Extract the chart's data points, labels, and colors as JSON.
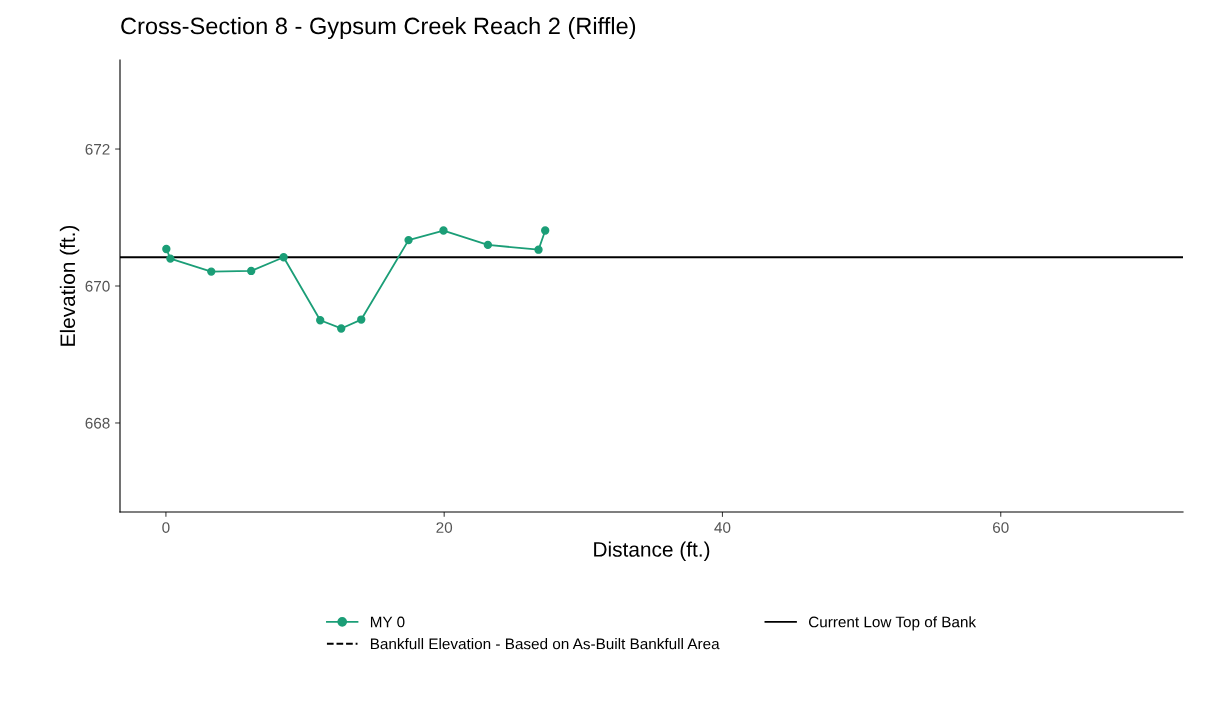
{
  "chart_data": {
    "type": "line",
    "title": "Cross-Section 8 - Gypsum Creek Reach 2 (Riffle)",
    "xlabel": "Distance (ft.)",
    "ylabel": "Elevation (ft.)",
    "series": [
      {
        "name": "MY 0",
        "color": "#1b9e77",
        "marker": "circle",
        "line_style": "solid",
        "x": [
          0.03,
          0.32,
          3.26,
          6.13,
          8.46,
          11.09,
          12.6,
          14.04,
          17.44,
          19.95,
          23.14,
          26.78,
          27.26
        ],
        "values": [
          670.54,
          670.4,
          670.21,
          670.22,
          670.42,
          669.5,
          669.38,
          669.51,
          670.67,
          670.81,
          670.6,
          670.53,
          670.81
        ]
      },
      {
        "name": "Bankfull Elevation - Based on As-Built Bankfull Area",
        "color": "#000000",
        "line_style": "dashed"
      }
    ],
    "ref_lines": [
      {
        "axis": "y",
        "value": 670.42,
        "label": "Current Low Top of Bank",
        "color": "#000000",
        "line_style": "solid"
      }
    ],
    "xlim": [
      -3.3,
      73.1
    ],
    "xticks": [
      0,
      20,
      40,
      60
    ],
    "ylim": [
      666.7,
      673.3
    ],
    "yticks": [
      668,
      670,
      672
    ],
    "grid": false,
    "legend": "bottom"
  }
}
